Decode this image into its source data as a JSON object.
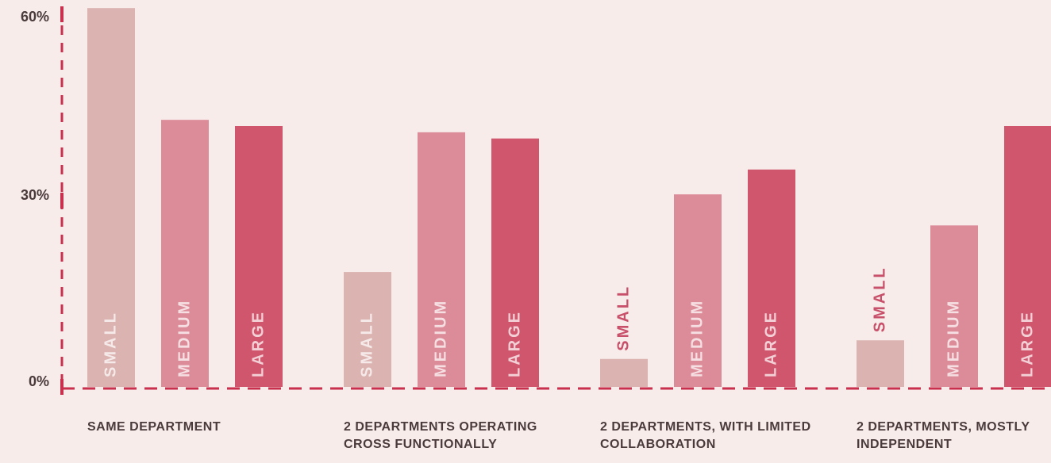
{
  "chart_data": {
    "type": "bar",
    "categories": [
      "SAME DEPARTMENT",
      "2 DEPARTMENTS OPERATING CROSS FUNCTIONALLY",
      "2 DEPARTMENTS, WITH LIMITED COLLABORATION",
      "2 DEPARTMENTS, MOSTLY INDEPENDENT"
    ],
    "series": [
      {
        "name": "SMALL",
        "color": "#dbb3b0",
        "values": [
          61,
          18.5,
          4.5,
          7.5
        ]
      },
      {
        "name": "MEDIUM",
        "color": "#dc8b98",
        "values": [
          43,
          41,
          31,
          26
        ]
      },
      {
        "name": "LARGE",
        "color": "#d0566d",
        "values": [
          42,
          40,
          35,
          42
        ]
      }
    ],
    "ylim": [
      0,
      60
    ],
    "yticks": [
      {
        "value": 0,
        "label": "0%"
      },
      {
        "value": 30,
        "label": "30%"
      },
      {
        "value": 60,
        "label": "60%"
      }
    ],
    "axis_color": "#c9304e"
  }
}
